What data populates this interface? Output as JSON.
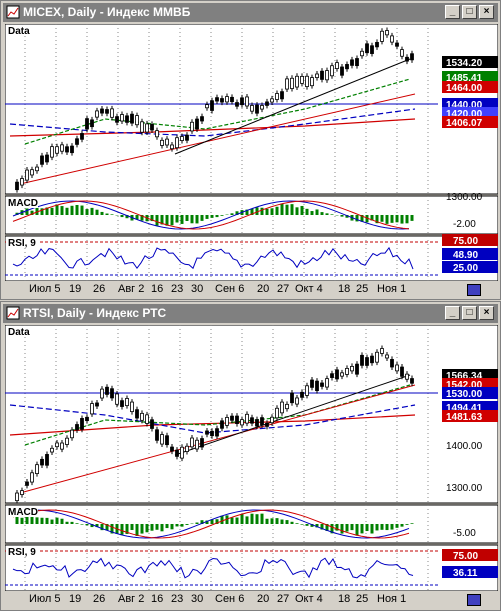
{
  "windows": [
    {
      "title": "MICEX, Daily - Индекс ММВБ",
      "panels": {
        "price_label": "Data",
        "macd_label": "MACD",
        "rsi_label": "RSI, 9"
      },
      "price_axis": [
        "1500.00",
        "1300.00"
      ],
      "price_badges": [
        {
          "text": "1534.20",
          "bg": "#000000",
          "fg": "#ffffff"
        },
        {
          "text": "1485.41",
          "bg": "#008000",
          "fg": "#ffffff"
        },
        {
          "text": "1464.00",
          "bg": "#d00000",
          "fg": "#ffffff"
        },
        {
          "text": "1440.00",
          "bg": "#0000c0",
          "fg": "#ffffff"
        },
        {
          "text": "1420.00",
          "bg": "#4040ff",
          "fg": "#ffffff"
        },
        {
          "text": "1406.07",
          "bg": "#d00000",
          "fg": "#ffffff"
        }
      ],
      "macd_axis": [
        "-2.00"
      ],
      "rsi_badges": [
        {
          "text": "75.00",
          "bg": "#c00000",
          "fg": "#ffffff"
        },
        {
          "text": "48.90",
          "bg": "#0000c0",
          "fg": "#ffffff"
        },
        {
          "text": "25.00",
          "bg": "#0000c0",
          "fg": "#ffffff"
        }
      ],
      "x_labels": [
        "Июл 5",
        "19",
        "26",
        "Авг 2",
        "16",
        "23",
        "30",
        "Сен 6",
        "20",
        "27",
        "Окт 4",
        "18",
        "25",
        "Ноя 1"
      ]
    },
    {
      "title": "RTSI, Daily - Индекс РТС",
      "panels": {
        "price_label": "Data",
        "macd_label": "MACD",
        "rsi_label": "RSI, 9"
      },
      "price_axis": [
        "1600.00",
        "1400.00",
        "1300.00"
      ],
      "price_badges": [
        {
          "text": "1566.34",
          "bg": "#000000",
          "fg": "#ffffff"
        },
        {
          "text": "1542.00",
          "bg": "#d00000",
          "fg": "#ffffff"
        },
        {
          "text": "1530.00",
          "bg": "#0000c0",
          "fg": "#ffffff"
        },
        {
          "text": "1494.41",
          "bg": "#0000c0",
          "fg": "#ffffff"
        },
        {
          "text": "1481.63",
          "bg": "#d00000",
          "fg": "#ffffff"
        }
      ],
      "macd_axis": [
        "-5.00"
      ],
      "rsi_badges": [
        {
          "text": "75.00",
          "bg": "#c00000",
          "fg": "#ffffff"
        },
        {
          "text": "36.11",
          "bg": "#0000c0",
          "fg": "#ffffff"
        }
      ],
      "x_labels": [
        "Июл 5",
        "19",
        "26",
        "Авг 2",
        "16",
        "23",
        "30",
        "Сен 6",
        "20",
        "27",
        "Окт 4",
        "18",
        "25",
        "Ноя 1"
      ]
    }
  ],
  "window_buttons": {
    "minimize": "_",
    "maximize": "□",
    "close": "×"
  }
}
